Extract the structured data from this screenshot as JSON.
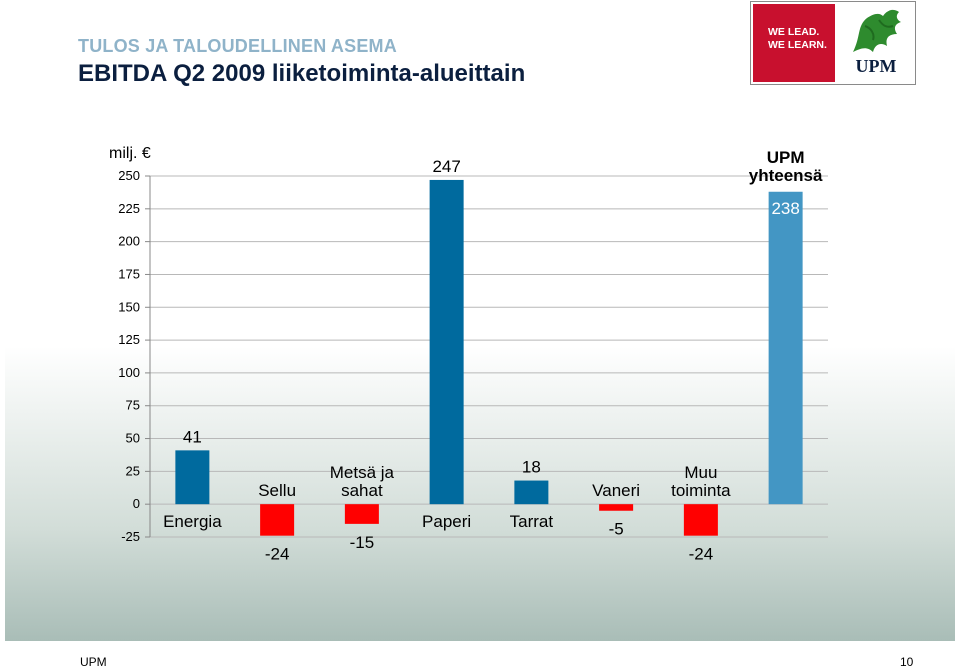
{
  "header": {
    "kicker": "TULOS JA TALOUDELLINEN ASEMA",
    "title": "EBITDA Q2 2009 liiketoiminta-alueittain"
  },
  "logo": {
    "tagline_1": "WE LEAD.",
    "tagline_2": "WE LEARN.",
    "brand": "UPM",
    "icon": "griffin-icon",
    "brand_color": "#c8102e"
  },
  "footer": {
    "left": "UPM",
    "page_number": "10"
  },
  "chart_data": {
    "type": "bar",
    "unit_label": "milj. €",
    "ylim": [
      -25,
      250
    ],
    "yticks": [
      250,
      225,
      200,
      175,
      150,
      125,
      100,
      75,
      50,
      25,
      0,
      -25
    ],
    "grid": true,
    "categories": [
      {
        "name": "Energia",
        "value": 41,
        "value_label": "41",
        "color": "#006a9e"
      },
      {
        "name": "Sellu",
        "value": -24,
        "value_label": "-24",
        "color": "#ff0000"
      },
      {
        "name": "Metsä ja\nsahat",
        "value": -15,
        "value_label": "-15",
        "color": "#ff0000"
      },
      {
        "name": "Paperi",
        "value": 247,
        "value_label": "247",
        "color": "#006a9e"
      },
      {
        "name": "Tarrat",
        "value": 18,
        "value_label": "18",
        "color": "#006a9e"
      },
      {
        "name": "Vaneri",
        "value": -5,
        "value_label": "-5",
        "color": "#ff0000"
      },
      {
        "name": "Muu\ntoiminta",
        "value": -24,
        "value_label": "-24",
        "color": "#ff0000"
      },
      {
        "name": "UPM\nyhteensä",
        "value": 238,
        "value_label": "238",
        "color": "#4396c4"
      }
    ]
  }
}
